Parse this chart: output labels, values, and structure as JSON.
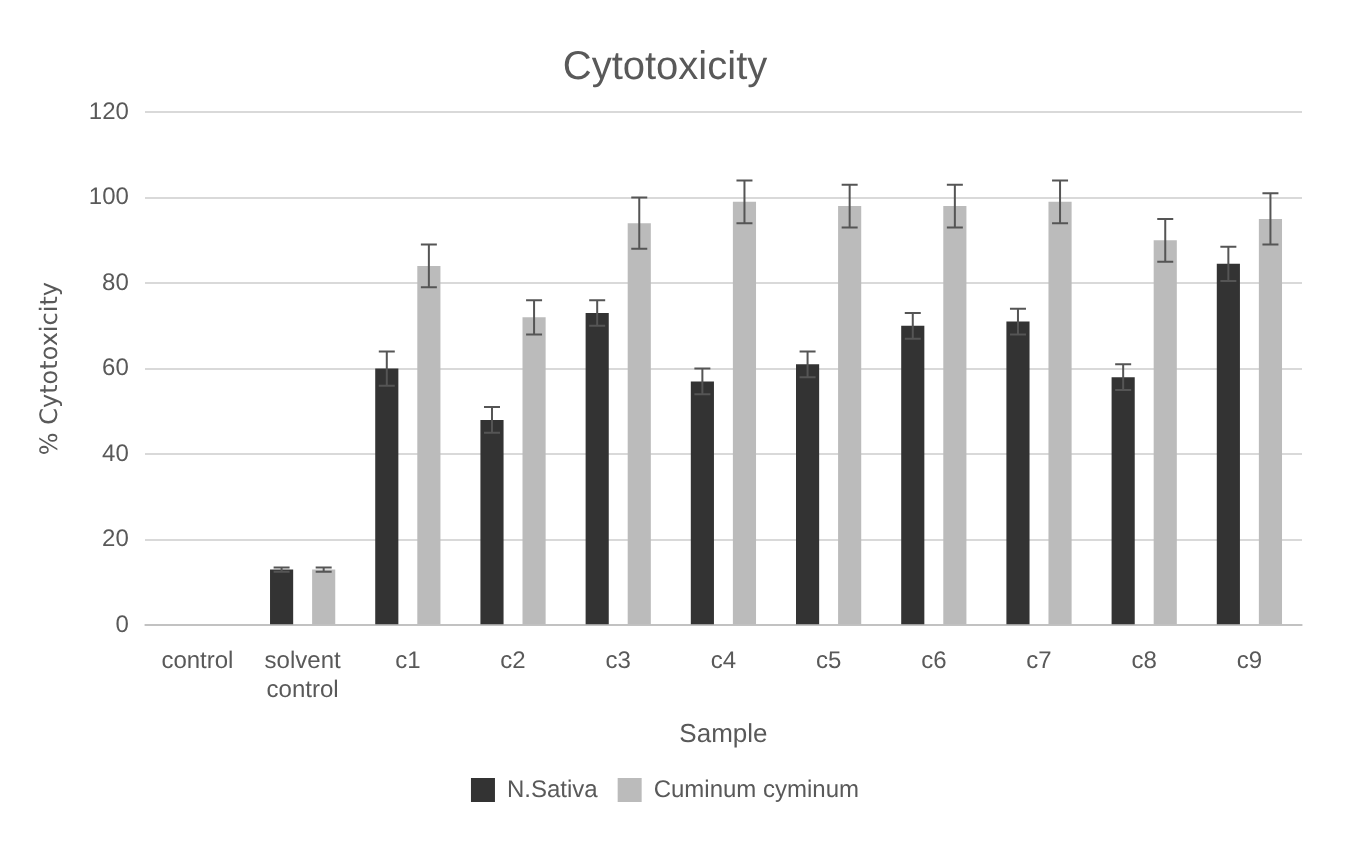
{
  "chart_data": {
    "type": "bar",
    "title": "Cytotoxicity",
    "xlabel": "Sample",
    "ylabel": "% Cytotoxicity",
    "categories": [
      "control",
      "solvent control",
      "c1",
      "c2",
      "c3",
      "c4",
      "c5",
      "c6",
      "c7",
      "c8",
      "c9"
    ],
    "series": [
      {
        "name": "N.Sativa",
        "color": "#333333",
        "values": [
          0,
          13,
          60,
          48,
          73,
          57,
          61,
          70,
          71,
          58,
          84.5
        ],
        "errors": [
          null,
          0.5,
          4,
          3,
          3,
          3,
          3,
          3,
          3,
          3,
          4
        ]
      },
      {
        "name": "Cuminum cyminum",
        "color": "#bbbbbb",
        "values": [
          0,
          13,
          84,
          72,
          94,
          99,
          98,
          98,
          99,
          90,
          95
        ],
        "errors": [
          null,
          0.5,
          5,
          4,
          6,
          5,
          5,
          5,
          5,
          5,
          6
        ]
      }
    ],
    "ylim": [
      0,
      120
    ],
    "yticks": [
      0,
      20,
      40,
      60,
      80,
      100,
      120
    ],
    "grid": "y",
    "legend": "bottom"
  }
}
